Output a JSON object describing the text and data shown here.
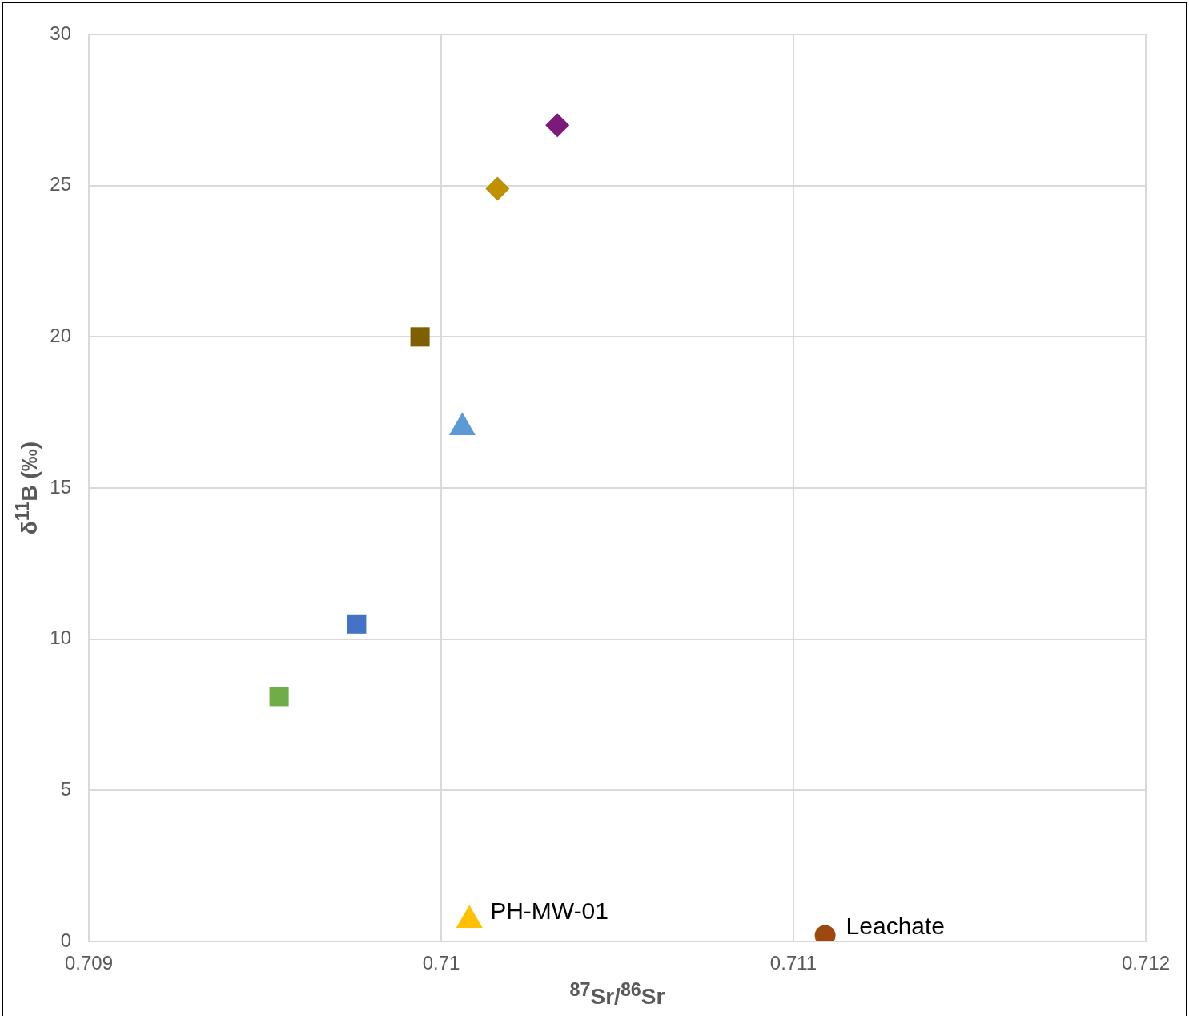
{
  "chart_data": {
    "type": "scatter",
    "xlabel": "$^{87}$Sr/$^{86}$Sr",
    "ylabel": "δ$^{11}$B  (‰)",
    "xlim": [
      0.709,
      0.712
    ],
    "xticks": [
      0.709,
      0.71,
      0.711,
      0.712
    ],
    "ylim": [
      0,
      30
    ],
    "yticks": [
      0,
      5,
      10,
      15,
      20,
      25,
      30
    ],
    "grid": true,
    "legend": false,
    "series": [
      {
        "color": "#7b1a7b",
        "marker": "diamond",
        "x": [
          0.71033
        ],
        "values": [
          27.0
        ]
      },
      {
        "color": "#bf9000",
        "marker": "diamond",
        "x": [
          0.71016
        ],
        "values": [
          24.9
        ]
      },
      {
        "color": "#7f6000",
        "marker": "square",
        "x": [
          0.70994
        ],
        "values": [
          20.0
        ]
      },
      {
        "color": "#5b9bd5",
        "marker": "triangle",
        "x": [
          0.71006
        ],
        "values": [
          17.0
        ]
      },
      {
        "color": "#4472c4",
        "marker": "square",
        "x": [
          0.70976
        ],
        "values": [
          10.5
        ]
      },
      {
        "color": "#70ad47",
        "marker": "square",
        "x": [
          0.70954
        ],
        "values": [
          8.1
        ]
      },
      {
        "name": "PH-MW-01",
        "color": "#ffc000",
        "marker": "triangle",
        "x": [
          0.71008
        ],
        "values": [
          0.7
        ]
      },
      {
        "name": "Leachate",
        "color": "#9e480e",
        "marker": "circle",
        "x": [
          0.71109
        ],
        "values": [
          0.2
        ]
      }
    ]
  }
}
